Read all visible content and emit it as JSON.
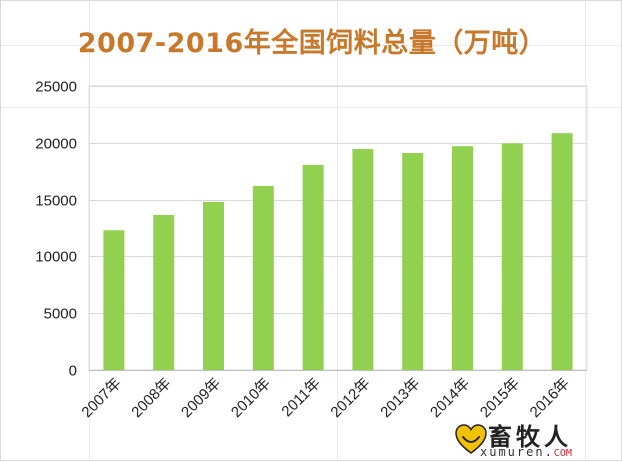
{
  "chart_data": {
    "type": "bar",
    "title": "2007-2016年全国饲料总量（万吨）",
    "categories": [
      "2007年",
      "2008年",
      "2009年",
      "2010年",
      "2011年",
      "2012年",
      "2013年",
      "2014年",
      "2015年",
      "2016年"
    ],
    "values": [
      12300,
      13650,
      14800,
      16200,
      18050,
      19450,
      19100,
      19700,
      19950,
      20850
    ],
    "ylim": [
      0,
      25000
    ],
    "yticks": [
      0,
      5000,
      10000,
      15000,
      20000,
      25000
    ],
    "grid": true,
    "bar_color": "#92d050",
    "xlabel": "",
    "ylabel": ""
  },
  "watermark": {
    "name": "畜牧人",
    "url_main": "xumuren.",
    "url_tld": "COM",
    "colors": {
      "heart": "#f2c200",
      "tld": "#dd2222"
    }
  }
}
